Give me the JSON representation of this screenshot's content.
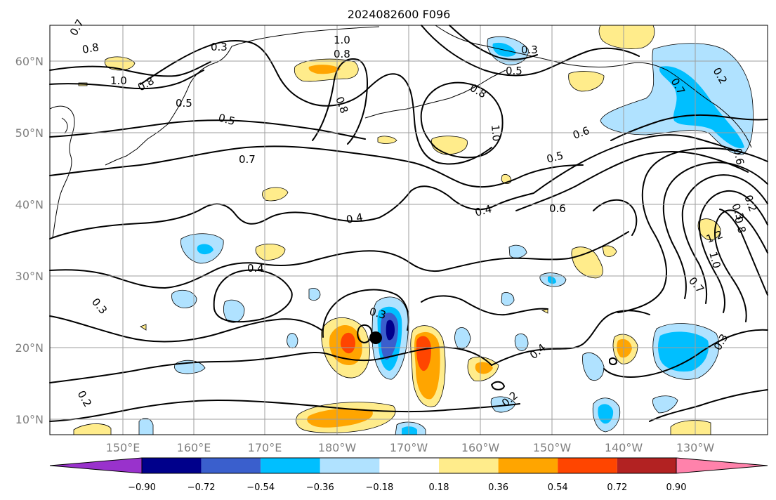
{
  "title": "2024082600 F096",
  "map": {
    "lat_ticks": [
      "60°N",
      "50°N",
      "40°N",
      "30°N",
      "20°N",
      "10°N"
    ],
    "lon_ticks": [
      "150°E",
      "160°E",
      "170°E",
      "180°W",
      "170°W",
      "160°W",
      "150°W",
      "140°W",
      "130°W"
    ],
    "contour_labels": [
      "0.7",
      "0.8",
      "1.0",
      "0.8",
      "0.5",
      "1.0",
      "0.8",
      "0.3",
      "0.5",
      "0.8",
      "0.3",
      "0.2",
      "0.5",
      "0.6",
      "0.7",
      "0.8",
      "1.0",
      "0.6",
      "0.5",
      "0.7",
      "0.4",
      "0.4",
      "0.6",
      "0.2",
      "0.3",
      "1.2",
      "0.8",
      "1.0",
      "0.7",
      "0.4",
      "0.3",
      "0.3",
      "0.4",
      "0.2",
      "0.3",
      "0.2"
    ],
    "storm_marker": "black-dot"
  },
  "colorbar": {
    "ticks": [
      "−0.90",
      "−0.72",
      "−0.54",
      "−0.36",
      "−0.18",
      "0.18",
      "0.36",
      "0.54",
      "0.72",
      "0.90"
    ],
    "colors": [
      "#9932cc",
      "#00008b",
      "#3a5fcd",
      "#00bfff",
      "#b0e2ff",
      "#ffffff",
      "#ffec8b",
      "#ffa500",
      "#ff4500",
      "#b22222",
      "#ff82ab"
    ]
  }
}
